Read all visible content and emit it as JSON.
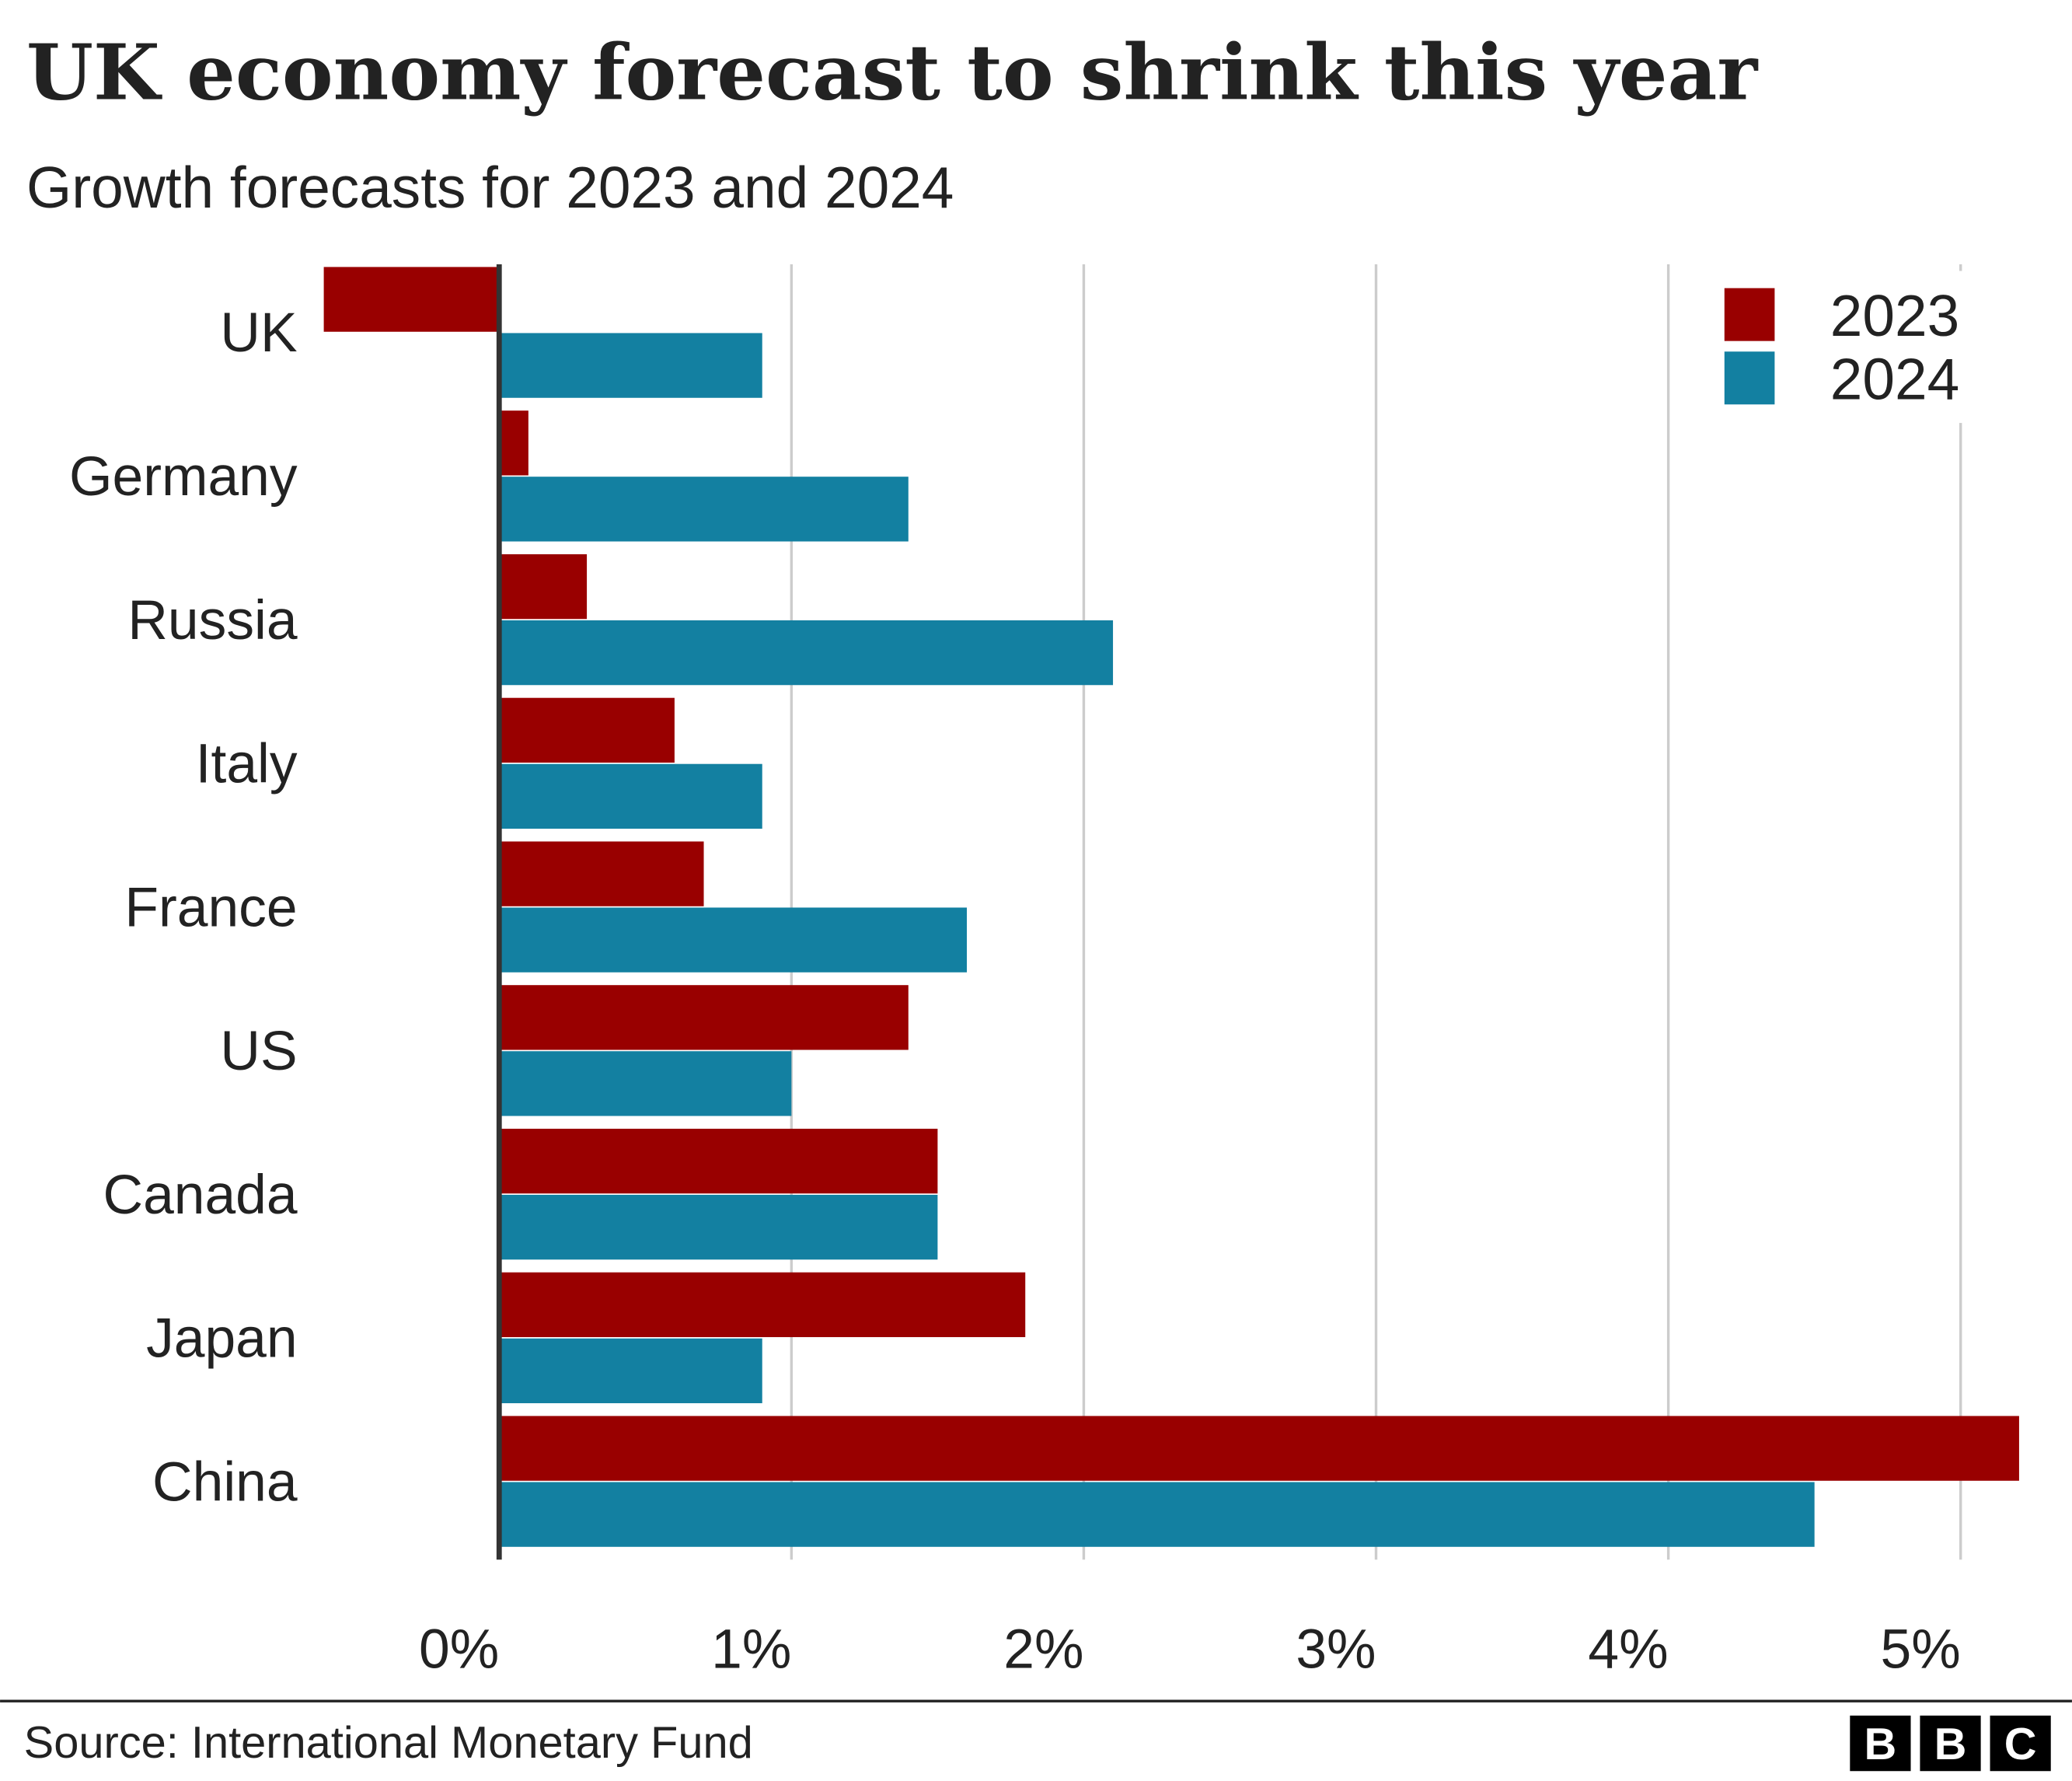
{
  "chart_data": {
    "type": "bar",
    "orientation": "horizontal",
    "title": "UK economy forecast to shrink this year",
    "subtitle": "Growth forecasts for 2023 and 2024",
    "categories": [
      "UK",
      "Germany",
      "Russia",
      "Italy",
      "France",
      "US",
      "Canada",
      "Japan",
      "China"
    ],
    "series": [
      {
        "name": "2023",
        "color": "#990000",
        "values": [
          -0.6,
          0.1,
          0.3,
          0.6,
          0.7,
          1.4,
          1.5,
          1.8,
          5.2
        ]
      },
      {
        "name": "2024",
        "color": "#1380a1",
        "values": [
          0.9,
          1.4,
          2.1,
          0.9,
          1.6,
          1.0,
          1.5,
          0.9,
          4.5
        ]
      }
    ],
    "xlim": [
      -0.6,
      5.2
    ],
    "xticks": [
      {
        "value": 0,
        "label": "0%"
      },
      {
        "value": 1,
        "label": "1%"
      },
      {
        "value": 2,
        "label": "2%"
      },
      {
        "value": 3,
        "label": "3%"
      },
      {
        "value": 4,
        "label": "4%"
      },
      {
        "value": 5,
        "label": "5%"
      }
    ],
    "grid": true,
    "legend": "top-right",
    "source": "Source: International Monetary Fund",
    "logo": [
      "B",
      "B",
      "C"
    ]
  }
}
